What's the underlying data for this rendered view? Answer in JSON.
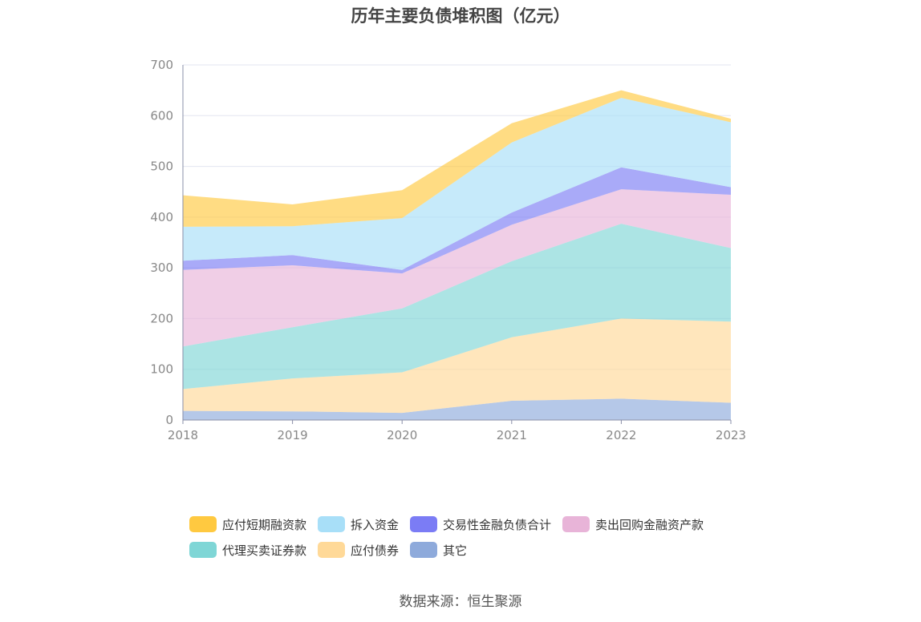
{
  "chart_data": {
    "type": "area",
    "stacked": true,
    "title": "历年主要负债堆积图（亿元）",
    "source": "数据来源：恒生聚源",
    "categories": [
      "2018",
      "2019",
      "2020",
      "2021",
      "2022",
      "2023"
    ],
    "ylim": [
      0,
      700
    ],
    "yticks": [
      "0",
      "100",
      "200",
      "300",
      "400",
      "500",
      "600",
      "700"
    ],
    "grid": true,
    "legend_position": "bottom",
    "series": [
      {
        "name": "其它",
        "color": "#8eaadb",
        "values": [
          18,
          17,
          14,
          38,
          42,
          34
        ]
      },
      {
        "name": "应付债券",
        "color": "#ffd998",
        "values": [
          43,
          65,
          80,
          125,
          158,
          160
        ]
      },
      {
        "name": "代理买卖证券款",
        "color": "#7fd6d6",
        "values": [
          84,
          101,
          126,
          150,
          187,
          145
        ]
      },
      {
        "name": "卖出回购金融资产款",
        "color": "#e8b4d8",
        "values": [
          151,
          122,
          69,
          72,
          68,
          105
        ]
      },
      {
        "name": "交易性金融负债合计",
        "color": "#7b7cf5",
        "values": [
          18,
          20,
          7,
          24,
          43,
          15
        ]
      },
      {
        "name": "拆入资金",
        "color": "#a8dff8",
        "values": [
          67,
          57,
          102,
          138,
          137,
          128
        ]
      },
      {
        "name": "应付短期融资款",
        "color": "#ffc940",
        "values": [
          62,
          43,
          55,
          38,
          15,
          7
        ]
      }
    ]
  },
  "legend": {
    "row1": [
      {
        "label": "应付短期融资款",
        "color": "#ffc940"
      },
      {
        "label": "拆入资金",
        "color": "#a8dff8"
      },
      {
        "label": "交易性金融负债合计",
        "color": "#7b7cf5"
      },
      {
        "label": "卖出回购金融资产款",
        "color": "#e8b4d8"
      }
    ],
    "row2": [
      {
        "label": "代理买卖证券款",
        "color": "#7fd6d6"
      },
      {
        "label": "应付债券",
        "color": "#ffd998"
      },
      {
        "label": "其它",
        "color": "#8eaadb"
      }
    ]
  }
}
